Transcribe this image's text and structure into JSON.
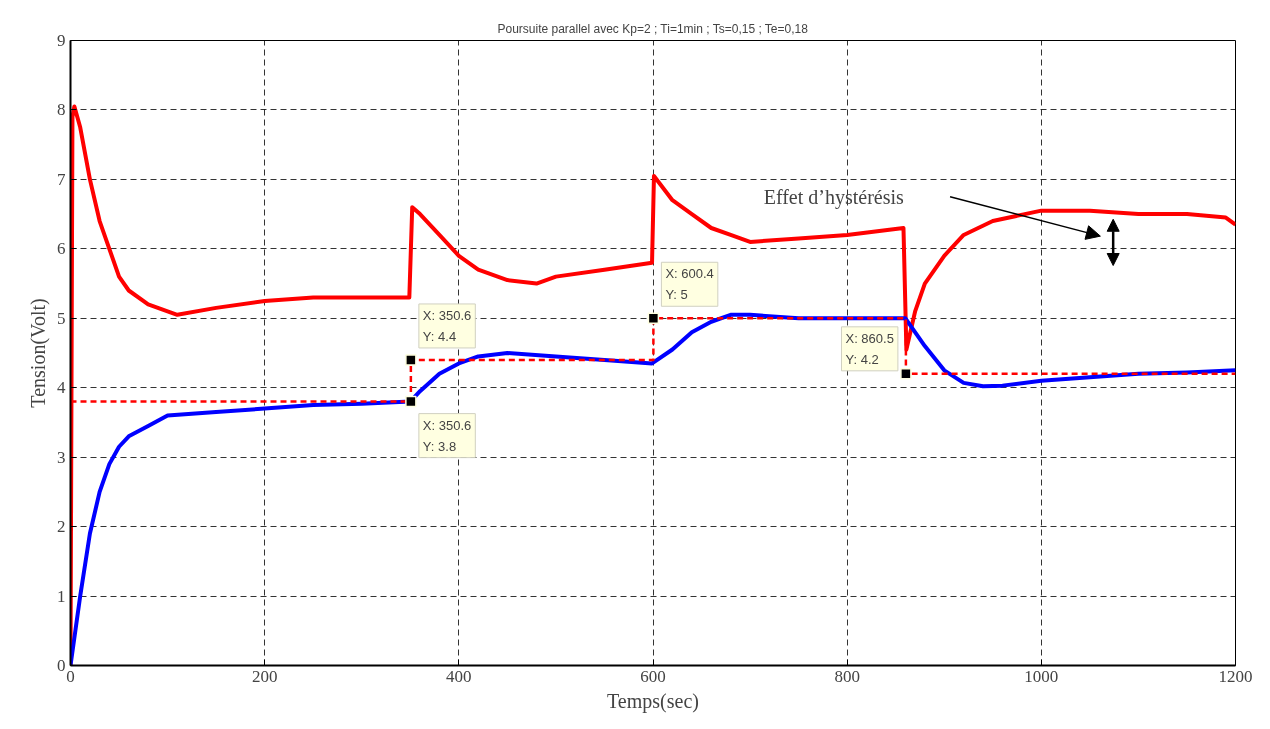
{
  "chart_data": {
    "type": "line",
    "title": "Poursuite parallel avec Kp=2 ; Ti=1min ; Ts=0,15 ; Te=0,18",
    "xlabel": "Temps(sec)",
    "ylabel": "Tension(Volt)",
    "xlim": [
      0,
      1200
    ],
    "ylim": [
      0,
      9
    ],
    "xticks": [
      0,
      200,
      400,
      600,
      800,
      1000,
      1200
    ],
    "yticks": [
      0,
      1,
      2,
      3,
      4,
      5,
      6,
      7,
      8,
      9
    ],
    "grid": true,
    "series": [
      {
        "color": "#ff0000",
        "line_style": "solid",
        "x": [
          0,
          2,
          4,
          10,
          20,
          30,
          40,
          50,
          60,
          80,
          100,
          110,
          150,
          200,
          250,
          300,
          349,
          352,
          360,
          380,
          400,
          420,
          450,
          480,
          500,
          550,
          599,
          601,
          620,
          640,
          660,
          680,
          700,
          750,
          800,
          858,
          861,
          870,
          880,
          900,
          920,
          950,
          1000,
          1050,
          1100,
          1150,
          1190,
          1200
        ],
        "values": [
          0,
          7.9,
          8.05,
          7.75,
          7.0,
          6.4,
          6.0,
          5.6,
          5.4,
          5.2,
          5.1,
          5.05,
          5.15,
          5.25,
          5.3,
          5.3,
          5.3,
          6.6,
          6.5,
          6.2,
          5.9,
          5.7,
          5.55,
          5.5,
          5.6,
          5.7,
          5.8,
          7.05,
          6.7,
          6.5,
          6.3,
          6.2,
          6.1,
          6.15,
          6.2,
          6.3,
          4.55,
          5.1,
          5.5,
          5.9,
          6.2,
          6.4,
          6.55,
          6.55,
          6.5,
          6.5,
          6.45,
          6.35
        ]
      },
      {
        "color": "#0000ff",
        "line_style": "solid",
        "x": [
          0,
          10,
          20,
          30,
          40,
          50,
          60,
          80,
          100,
          150,
          200,
          250,
          300,
          350,
          360,
          380,
          400,
          420,
          450,
          500,
          550,
          599,
          620,
          640,
          660,
          680,
          700,
          750,
          800,
          860,
          880,
          900,
          920,
          940,
          960,
          1000,
          1050,
          1100,
          1150,
          1200
        ],
        "values": [
          0,
          1.0,
          1.9,
          2.5,
          2.9,
          3.15,
          3.3,
          3.45,
          3.6,
          3.65,
          3.7,
          3.75,
          3.77,
          3.8,
          3.95,
          4.2,
          4.35,
          4.45,
          4.5,
          4.45,
          4.4,
          4.35,
          4.55,
          4.8,
          4.95,
          5.05,
          5.05,
          5.0,
          5.0,
          5.0,
          4.6,
          4.25,
          4.07,
          4.02,
          4.03,
          4.1,
          4.15,
          4.2,
          4.22,
          4.25
        ]
      },
      {
        "color": "#ff0000",
        "line_style": "dashed",
        "x": [
          0,
          350.6,
          350.6,
          600.4,
          600.4,
          860.5,
          860.5,
          1200
        ],
        "values": [
          3.8,
          3.8,
          4.4,
          4.4,
          5,
          5,
          4.2,
          4.2
        ]
      }
    ],
    "annotations": [
      {
        "text": "X: 350.6\nY: 4.4",
        "x": 350.6,
        "y": 4.4
      },
      {
        "text": "X: 350.6\nY: 3.8",
        "x": 350.6,
        "y": 3.8
      },
      {
        "text": "X: 600.4\nY: 5",
        "x": 600.4,
        "y": 5
      },
      {
        "text": "X: 860.5\nY: 4.2",
        "x": 860.5,
        "y": 4.2
      },
      "Effet d’hystérésis"
    ]
  }
}
